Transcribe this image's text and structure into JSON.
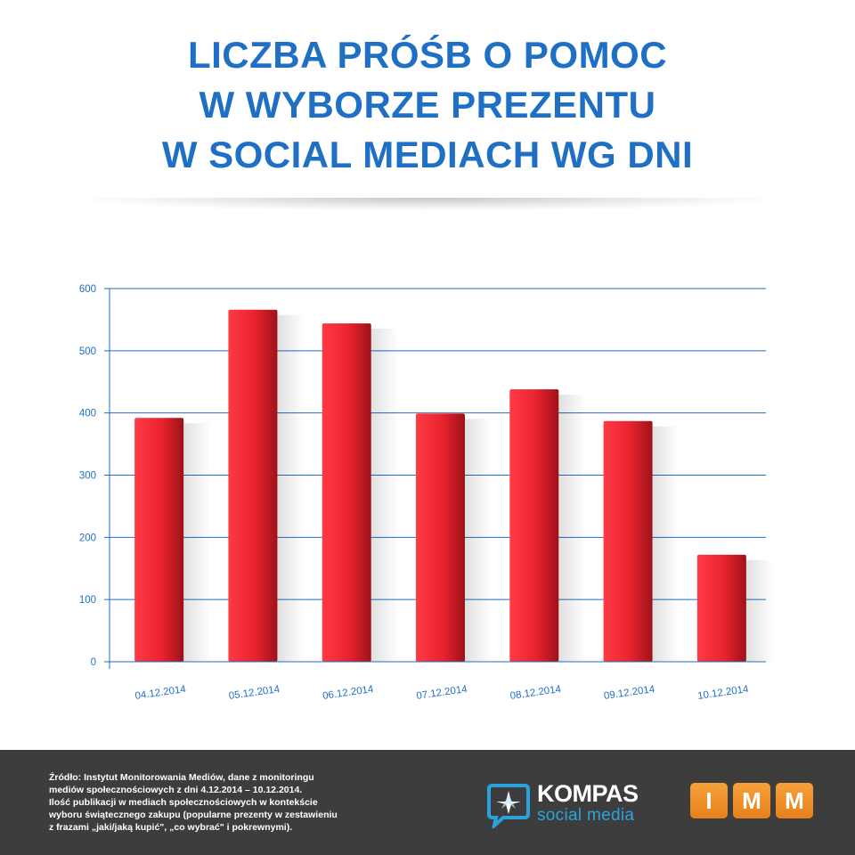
{
  "chart_data": {
    "type": "bar",
    "title_lines": [
      "LICZBA PRÓŚB O POMOC",
      "W WYBORZE PREZENTU",
      "W SOCIAL MEDIACH WG DNI"
    ],
    "categories": [
      "04.12.2014",
      "05.12.2014",
      "06.12.2014",
      "07.12.2014",
      "08.12.2014",
      "09.12.2014",
      "10.12.2014"
    ],
    "values": [
      392,
      566,
      544,
      399,
      438,
      387,
      172
    ],
    "ylim": [
      0,
      600
    ],
    "yticks": [
      0,
      100,
      200,
      300,
      400,
      500,
      600
    ],
    "grid": true,
    "bar_color": "#e8232e",
    "axis_color": "#1f6fc5"
  },
  "footer": {
    "note_lines": [
      "Źródło: Instytut Monitorowania Mediów, dane z monitoringu",
      "mediów społecznościowych z dni 4.12.2014 – 10.12.2014.",
      "Ilość publikacji w mediach społecznościowych w kontekście",
      "wyboru świątecznego zakupu (popularne prezenty w zestawieniu",
      "z frazami „jaki/jaką kupić\", „co wybrać\" i pokrewnymi)."
    ],
    "kompas_name": "KOMPAS",
    "kompas_sub": "social media",
    "imm_letters": [
      "I",
      "M",
      "M"
    ],
    "kompas_icon": "speech-bubble-compass-icon"
  }
}
